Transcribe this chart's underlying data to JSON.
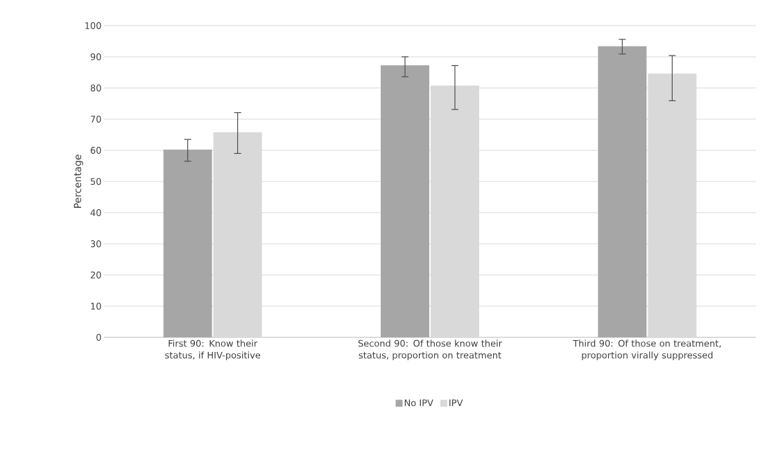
{
  "chart_data": {
    "type": "bar",
    "ylabel": "Percentage",
    "categories": [
      "First 90: Know their status, if HIV-positive",
      "Second 90: Of those know their status, proportion on treatment",
      "Third 90: Of those on treatment, proportion virally suppressed"
    ],
    "series": [
      {
        "name": "No IPV",
        "color": "#a6a6a6",
        "values": [
          60.2,
          87.3,
          93.4
        ],
        "errors": [
          [
            56.5,
            63.5
          ],
          [
            83.6,
            90.0
          ],
          [
            90.9,
            95.6
          ]
        ]
      },
      {
        "name": "IPV",
        "color": "#d9d9d9",
        "values": [
          65.8,
          80.8,
          84.6
        ],
        "errors": [
          [
            59.0,
            72.1
          ],
          [
            73.1,
            87.2
          ],
          [
            75.9,
            90.4
          ]
        ]
      }
    ],
    "ylim": [
      0,
      100
    ],
    "yticks": [
      0,
      10,
      20,
      30,
      40,
      50,
      60,
      70,
      80,
      90,
      100
    ],
    "grid": "y",
    "legend": "bottom"
  }
}
